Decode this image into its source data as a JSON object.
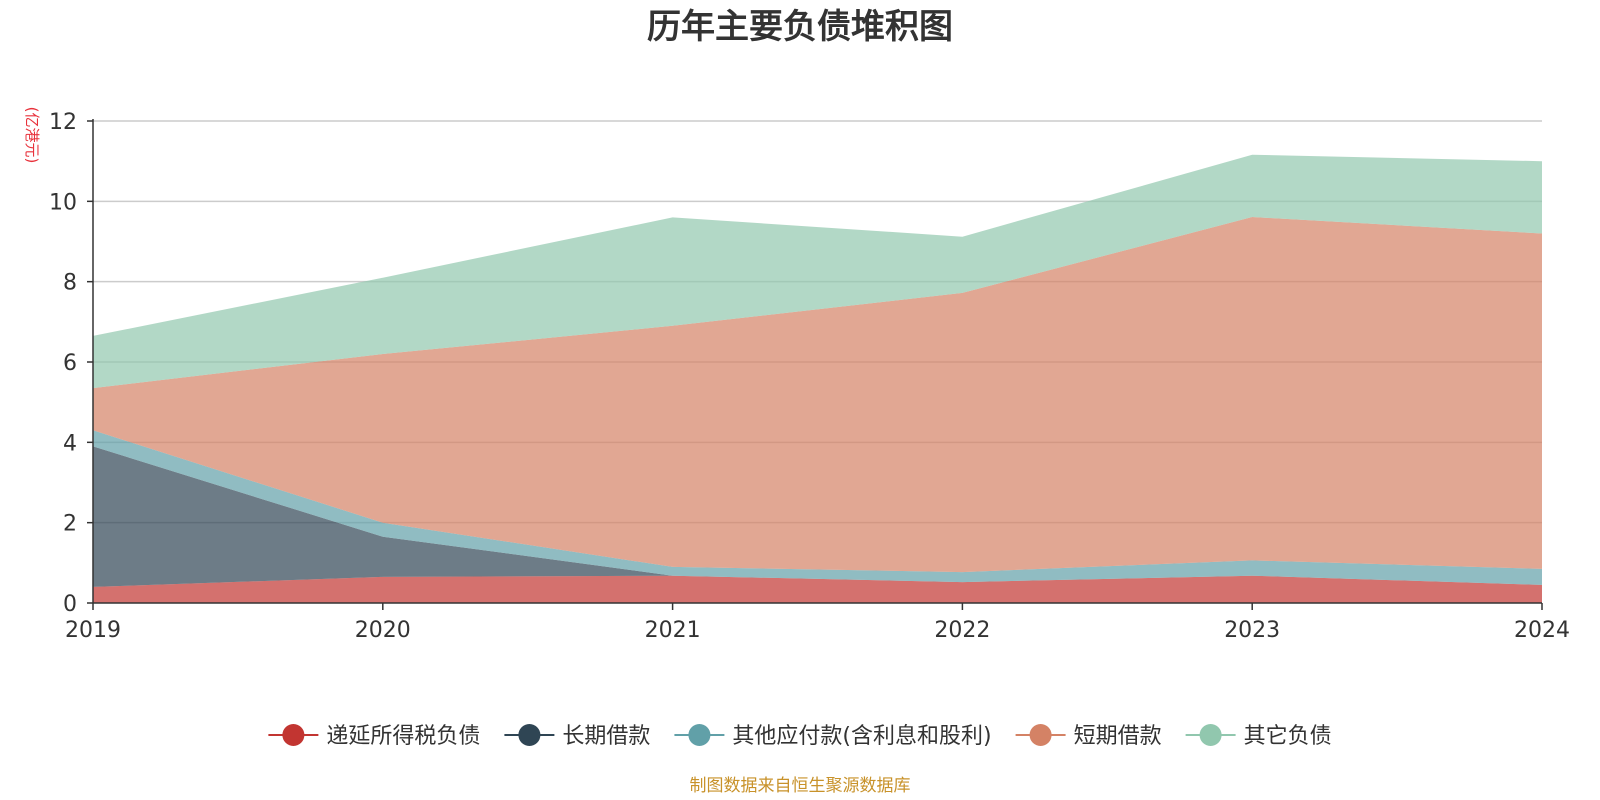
{
  "chart_data": {
    "type": "area",
    "stacked": true,
    "title": "历年主要负债堆积图",
    "unit_label": "(亿港元)",
    "source": "制图数据来自恒生聚源数据库",
    "x": [
      "2019",
      "2020",
      "2021",
      "2022",
      "2023",
      "2024"
    ],
    "ylim": [
      0,
      12
    ],
    "yticks": [
      0,
      2,
      4,
      6,
      8,
      10,
      12
    ],
    "grid": true,
    "legend_position": "bottom",
    "series": [
      {
        "name": "递延所得税负债",
        "color": "#c23531",
        "values": [
          0.4,
          0.65,
          0.68,
          0.52,
          0.68,
          0.45
        ]
      },
      {
        "name": "长期借款",
        "color": "#2f4554",
        "values": [
          3.5,
          1.0,
          0.0,
          0.0,
          0.0,
          0.0
        ]
      },
      {
        "name": "其他应付款(含利息和股利)",
        "color": "#61a0a8",
        "values": [
          0.4,
          0.35,
          0.22,
          0.25,
          0.38,
          0.4
        ]
      },
      {
        "name": "短期借款",
        "color": "#d48265",
        "values": [
          1.05,
          4.2,
          6.0,
          6.95,
          8.55,
          8.35
        ]
      },
      {
        "name": "其它负债",
        "color": "#91c7ae",
        "values": [
          1.3,
          1.9,
          2.7,
          1.4,
          1.55,
          1.8
        ]
      }
    ]
  }
}
